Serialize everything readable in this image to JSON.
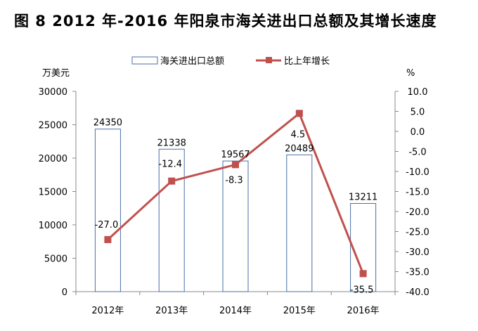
{
  "title": "图 8   2012 年-2016 年阳泉市海关进出口总额及其增长速度",
  "chart_data": {
    "type": "bar+line",
    "categories": [
      "2012年",
      "2013年",
      "2014年",
      "2015年",
      "2016年"
    ],
    "series": [
      {
        "name": "海关进出口总额",
        "type": "bar",
        "axis": "left",
        "values": [
          24350,
          21338,
          19567,
          20489,
          13211
        ],
        "color": "#4a6fa5"
      },
      {
        "name": "比上年增长",
        "type": "line",
        "axis": "right",
        "values": [
          -27.0,
          -12.4,
          -8.3,
          4.5,
          -35.5
        ],
        "color": "#c0504d"
      }
    ],
    "bar_labels": [
      "24350",
      "21338",
      "19567",
      "20489",
      "13211"
    ],
    "line_labels": [
      "-27.0",
      "-12.4",
      "-8.3",
      "4.5",
      "-35.5"
    ],
    "y_left": {
      "unit": "万美元",
      "ylim": [
        0,
        30000
      ],
      "ticks": [
        "0",
        "5000",
        "10000",
        "15000",
        "20000",
        "25000",
        "30000"
      ]
    },
    "y_right": {
      "unit": "%",
      "ylim": [
        -40,
        10
      ],
      "ticks": [
        "10.0",
        "5.0",
        "0.0",
        "-5.0",
        "-10.0",
        "-15.0",
        "-20.0",
        "-25.0",
        "-30.0",
        "-35.0",
        "-40.0"
      ]
    },
    "legend_position": "top-center",
    "grid": false
  }
}
